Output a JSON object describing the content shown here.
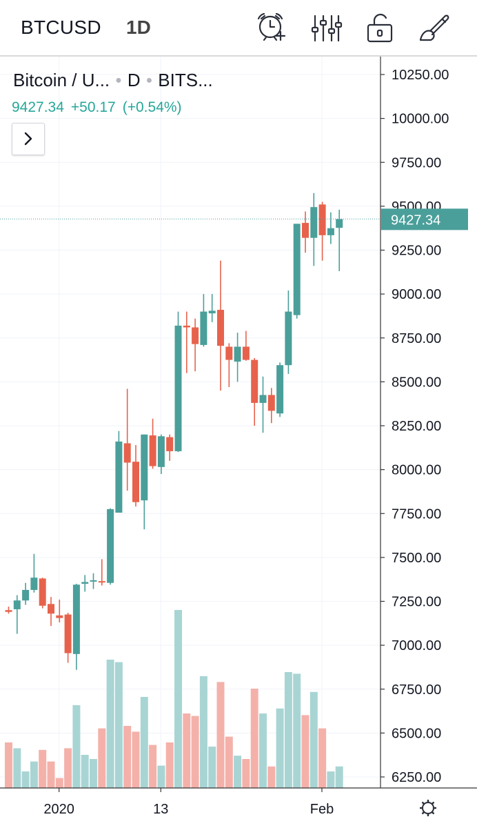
{
  "header": {
    "symbol": "BTCUSD",
    "interval": "1D",
    "tools": [
      {
        "name": "alarm-add-icon"
      },
      {
        "name": "indicators-icon"
      },
      {
        "name": "lock-icon"
      },
      {
        "name": "brush-icon"
      }
    ]
  },
  "legend": {
    "title": "Bitcoin / U...",
    "interval": "D",
    "exchange": "BITS...",
    "last": "9427.34",
    "change": "+50.17",
    "change_pct": "(+0.54%)"
  },
  "colors": {
    "up": "#26a69a",
    "down": "#ef5350",
    "up_body": "#4a9f9a",
    "down_body": "#e7624c",
    "up_volume": "#a8d5d4",
    "down_volume": "#f4b1aa",
    "price_label_bg": "#4a9f9a",
    "grid": "#f0f3fa",
    "axis_text": "#131722"
  },
  "chart_data": {
    "type": "candlestick",
    "symbol": "BTCUSD",
    "interval": "1D",
    "y_ticks": [
      6250,
      6500,
      6750,
      7000,
      7250,
      7500,
      7750,
      8000,
      8250,
      8500,
      8750,
      9000,
      9250,
      9500,
      9750,
      10000,
      10250
    ],
    "y_tick_labels": [
      "6250.00",
      "6500.00",
      "6750.00",
      "7000.00",
      "7250.00",
      "7500.00",
      "7750.00",
      "8000.00",
      "8250.00",
      "8500.00",
      "8750.00",
      "9000.00",
      "9250.00",
      "9500.00",
      "9750.00",
      "10000.00",
      "10250.00"
    ],
    "ylim": [
      6200,
      10320
    ],
    "x_ticks": [
      {
        "label": "2020",
        "index": 5.95
      },
      {
        "label": "13",
        "index": 17.95
      },
      {
        "label": "Feb",
        "index": 36.95
      }
    ],
    "current_price": 9427.34,
    "current_price_label": "9427.34",
    "candles": [
      {
        "o": 7200,
        "h": 7220,
        "l": 7180,
        "c": 7190,
        "v": 0.55
      },
      {
        "o": 7205,
        "h": 7285,
        "l": 7065,
        "c": 7255,
        "v": 0.48
      },
      {
        "o": 7255,
        "h": 7355,
        "l": 7230,
        "c": 7315,
        "v": 0.2
      },
      {
        "o": 7315,
        "h": 7520,
        "l": 7300,
        "c": 7385,
        "v": 0.32
      },
      {
        "o": 7380,
        "h": 7385,
        "l": 7210,
        "c": 7225,
        "v": 0.46
      },
      {
        "o": 7235,
        "h": 7275,
        "l": 7110,
        "c": 7180,
        "v": 0.32
      },
      {
        "o": 7170,
        "h": 7260,
        "l": 7130,
        "c": 7155,
        "v": 0.12
      },
      {
        "o": 7175,
        "h": 7185,
        "l": 6900,
        "c": 6955,
        "v": 0.48
      },
      {
        "o": 6950,
        "h": 7350,
        "l": 6860,
        "c": 7345,
        "v": 1.0
      },
      {
        "o": 7350,
        "h": 7400,
        "l": 7305,
        "c": 7360,
        "v": 0.4
      },
      {
        "o": 7365,
        "h": 7410,
        "l": 7320,
        "c": 7370,
        "v": 0.35
      },
      {
        "o": 7365,
        "h": 7490,
        "l": 7340,
        "c": 7360,
        "v": 0.72
      },
      {
        "o": 7355,
        "h": 7780,
        "l": 7345,
        "c": 7775,
        "v": 1.55
      },
      {
        "o": 7755,
        "h": 8220,
        "l": 7760,
        "c": 8160,
        "v": 1.52
      },
      {
        "o": 8150,
        "h": 8460,
        "l": 7880,
        "c": 8040,
        "v": 0.75
      },
      {
        "o": 8045,
        "h": 8140,
        "l": 7790,
        "c": 7815,
        "v": 0.68
      },
      {
        "o": 7825,
        "h": 8200,
        "l": 7660,
        "c": 8200,
        "v": 1.1
      },
      {
        "o": 8195,
        "h": 8290,
        "l": 8005,
        "c": 8020,
        "v": 0.52
      },
      {
        "o": 8015,
        "h": 8200,
        "l": 7975,
        "c": 8190,
        "v": 0.27
      },
      {
        "o": 8185,
        "h": 8200,
        "l": 8050,
        "c": 8105,
        "v": 0.55
      },
      {
        "o": 8105,
        "h": 8900,
        "l": 8100,
        "c": 8820,
        "v": 2.15
      },
      {
        "o": 8820,
        "h": 8900,
        "l": 8550,
        "c": 8810,
        "v": 0.9
      },
      {
        "o": 8810,
        "h": 8860,
        "l": 8560,
        "c": 8715,
        "v": 0.87
      },
      {
        "o": 8710,
        "h": 9000,
        "l": 8700,
        "c": 8900,
        "v": 1.35
      },
      {
        "o": 8890,
        "h": 9000,
        "l": 8840,
        "c": 8905,
        "v": 0.5
      },
      {
        "o": 8910,
        "h": 9190,
        "l": 8450,
        "c": 8705,
        "v": 1.28
      },
      {
        "o": 8700,
        "h": 8720,
        "l": 8470,
        "c": 8625,
        "v": 0.62
      },
      {
        "o": 8615,
        "h": 8780,
        "l": 8500,
        "c": 8700,
        "v": 0.39
      },
      {
        "o": 8700,
        "h": 8790,
        "l": 8620,
        "c": 8625,
        "v": 0.35
      },
      {
        "o": 8625,
        "h": 8635,
        "l": 8250,
        "c": 8380,
        "v": 1.2
      },
      {
        "o": 8380,
        "h": 8530,
        "l": 8210,
        "c": 8425,
        "v": 0.9
      },
      {
        "o": 8425,
        "h": 8465,
        "l": 8265,
        "c": 8335,
        "v": 0.26
      },
      {
        "o": 8320,
        "h": 8610,
        "l": 8300,
        "c": 8595,
        "v": 0.96
      },
      {
        "o": 8595,
        "h": 9020,
        "l": 8545,
        "c": 8900,
        "v": 1.4
      },
      {
        "o": 8880,
        "h": 9400,
        "l": 8860,
        "c": 9400,
        "v": 1.38
      },
      {
        "o": 9405,
        "h": 9470,
        "l": 9235,
        "c": 9320,
        "v": 0.88
      },
      {
        "o": 9320,
        "h": 9575,
        "l": 9160,
        "c": 9495,
        "v": 1.16
      },
      {
        "o": 9510,
        "h": 9525,
        "l": 9190,
        "c": 9335,
        "v": 0.72
      },
      {
        "o": 9335,
        "h": 9465,
        "l": 9285,
        "c": 9375,
        "v": 0.2
      },
      {
        "o": 9377,
        "h": 9480,
        "l": 9130,
        "c": 9427,
        "v": 0.26
      }
    ]
  }
}
